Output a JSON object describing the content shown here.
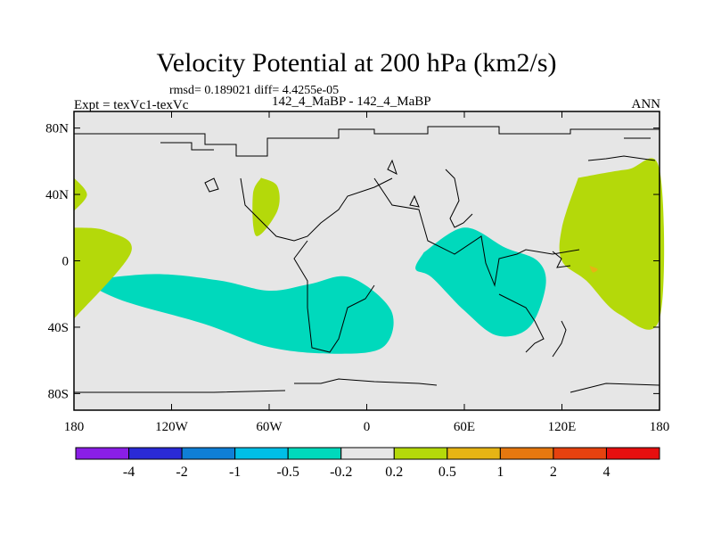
{
  "chart_data": {
    "type": "heatmap",
    "title": "Velocity Potential at 200 hPa (km2/s)",
    "stats": "rmsd= 0.189021 diff= 4.4255e-05",
    "left_label": "Expt = texVc1-texVc",
    "center_label": "142_4_MaBP - 142_4_MaBP",
    "right_label": "ANN",
    "x_ticks": [
      "180",
      "120W",
      "60W",
      "0",
      "60E",
      "120E",
      "180"
    ],
    "y_ticks": [
      "80N",
      "40N",
      "0",
      "40S",
      "80S"
    ],
    "xlim": [
      -180,
      180
    ],
    "ylim": [
      -90,
      90
    ],
    "colorbar": {
      "labels": [
        "-4",
        "-2",
        "-1",
        "-0.5",
        "-0.2",
        "0.2",
        "0.5",
        "1",
        "2",
        "4"
      ],
      "colors": [
        "#8a1ee6",
        "#2a2ad6",
        "#0f7fd6",
        "#00bfe6",
        "#00d9bc",
        "#e6e6e6",
        "#b4d90a",
        "#e6b414",
        "#e6780f",
        "#e6420f",
        "#e60f0f"
      ]
    },
    "regions": [
      {
        "name": "negative-pacific-band",
        "level": "-0.5 to -0.2",
        "color": "#00d9bc",
        "lon": [
          -175,
          -130,
          -90,
          -60,
          -35,
          -10,
          15,
          10,
          -20,
          -60,
          -100,
          -150,
          -175
        ],
        "lat": [
          -12,
          -8,
          -12,
          -18,
          -14,
          -10,
          -30,
          -52,
          -56,
          -52,
          -38,
          -24,
          -12
        ]
      },
      {
        "name": "negative-indian-ocean",
        "level": "-0.5 to -0.2",
        "color": "#00d9bc",
        "lon": [
          35,
          60,
          85,
          105,
          110,
          100,
          80,
          60,
          40,
          30,
          35
        ],
        "lat": [
          5,
          20,
          8,
          0,
          -15,
          -40,
          -45,
          -30,
          -10,
          -5,
          5
        ]
      },
      {
        "name": "positive-west-pacific",
        "level": "0.2 to 0.5",
        "color": "#b4d90a",
        "lon": [
          130,
          160,
          180,
          180,
          155,
          135,
          120,
          120,
          130
        ],
        "lat": [
          50,
          55,
          55,
          -35,
          -32,
          -12,
          0,
          20,
          50
        ]
      },
      {
        "name": "positive-west-atlantic",
        "level": "0.2 to 0.5",
        "color": "#b4d90a",
        "lon": [
          -180,
          -160,
          -145,
          -180
        ],
        "lat": [
          20,
          18,
          5,
          -35
        ]
      },
      {
        "name": "positive-north-atlantic",
        "level": "0.2 to 0.5",
        "color": "#b4d90a",
        "lon": [
          -65,
          -55,
          -55,
          -68,
          -70,
          -65
        ],
        "lat": [
          50,
          45,
          30,
          15,
          40,
          50
        ]
      },
      {
        "name": "positive-pole-edge",
        "level": "0.2 to 0.5",
        "color": "#b4d90a",
        "lon": [
          -180,
          -172,
          -180
        ],
        "lat": [
          50,
          40,
          30
        ]
      },
      {
        "name": "positive-center",
        "level": "0.5 to 1",
        "color": "#e6b414",
        "lon": [
          137,
          142,
          139,
          137
        ],
        "lat": [
          -3,
          -5,
          -7,
          -3
        ]
      }
    ]
  }
}
